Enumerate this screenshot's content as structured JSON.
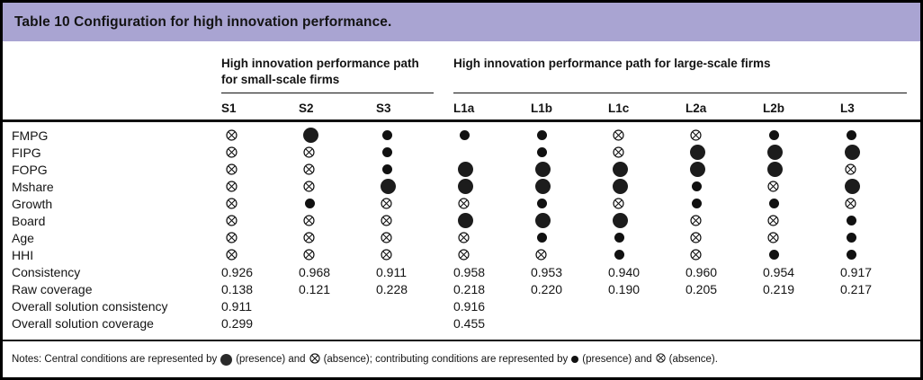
{
  "title": "Table 10 Configuration for high innovation performance.",
  "colors": {
    "header_band_bg": "#a9a4d2",
    "text": "#141414",
    "symbol_fill": "#1c1c1c"
  },
  "groups": [
    {
      "label": "High innovation performance path for small-scale firms",
      "columns": [
        "S1",
        "S2",
        "S3"
      ]
    },
    {
      "label": "High innovation performance path for large-scale firms",
      "columns": [
        "L1a",
        "L1b",
        "L1c",
        "L2a",
        "L2b",
        "L3"
      ]
    }
  ],
  "columns": [
    "S1",
    "S2",
    "S3",
    "L1a",
    "L1b",
    "L1c",
    "L2a",
    "L2b",
    "L3"
  ],
  "symbol_legend": {
    "CP": "central condition present (large filled circle)",
    "P": "contributing condition present (small filled circle)",
    "A": "condition absent (crossed circle)",
    "": "blank"
  },
  "condition_rows": [
    {
      "label": "FMPG",
      "cells": [
        "A",
        "CP",
        "P",
        "P",
        "P",
        "A",
        "A",
        "P",
        "P"
      ]
    },
    {
      "label": "FIPG",
      "cells": [
        "A",
        "A",
        "P",
        "",
        "P",
        "A",
        "CP",
        "CP",
        "CP"
      ]
    },
    {
      "label": "FOPG",
      "cells": [
        "A",
        "A",
        "P",
        "CP",
        "CP",
        "CP",
        "CP",
        "CP",
        "A"
      ]
    },
    {
      "label": "Mshare",
      "cells": [
        "A",
        "A",
        "CP",
        "CP",
        "CP",
        "CP",
        "P",
        "A",
        "CP"
      ]
    },
    {
      "label": "Growth",
      "cells": [
        "A",
        "P",
        "A",
        "A",
        "P",
        "A",
        "P",
        "P",
        "A"
      ]
    },
    {
      "label": "Board",
      "cells": [
        "A",
        "A",
        "A",
        "CP",
        "CP",
        "CP",
        "A",
        "A",
        "P"
      ]
    },
    {
      "label": "Age",
      "cells": [
        "A",
        "A",
        "A",
        "A",
        "P",
        "P",
        "A",
        "A",
        "P"
      ]
    },
    {
      "label": "HHI",
      "cells": [
        "A",
        "A",
        "A",
        "A",
        "A",
        "P",
        "A",
        "P",
        "P"
      ]
    }
  ],
  "stat_rows": [
    {
      "label": "Consistency",
      "values": [
        "0.926",
        "0.968",
        "0.911",
        "0.958",
        "0.953",
        "0.940",
        "0.960",
        "0.954",
        "0.917"
      ]
    },
    {
      "label": "Raw coverage",
      "values": [
        "0.138",
        "0.121",
        "0.228",
        "0.218",
        "0.220",
        "0.190",
        "0.205",
        "0.219",
        "0.217"
      ]
    },
    {
      "label": "Overall solution consistency",
      "values": [
        "0.911",
        "",
        "",
        "0.916",
        "",
        "",
        "",
        "",
        ""
      ]
    },
    {
      "label": "Overall solution coverage",
      "values": [
        "0.299",
        "",
        "",
        "0.455",
        "",
        "",
        "",
        "",
        ""
      ]
    }
  ],
  "notes": {
    "seg_central": "Notes: Central conditions are represented by",
    "seg_presence1": "(presence) and",
    "seg_absence1": "(absence); contributing conditions are represented by",
    "seg_presence2": "(presence) and",
    "seg_absence2": "(absence)."
  }
}
